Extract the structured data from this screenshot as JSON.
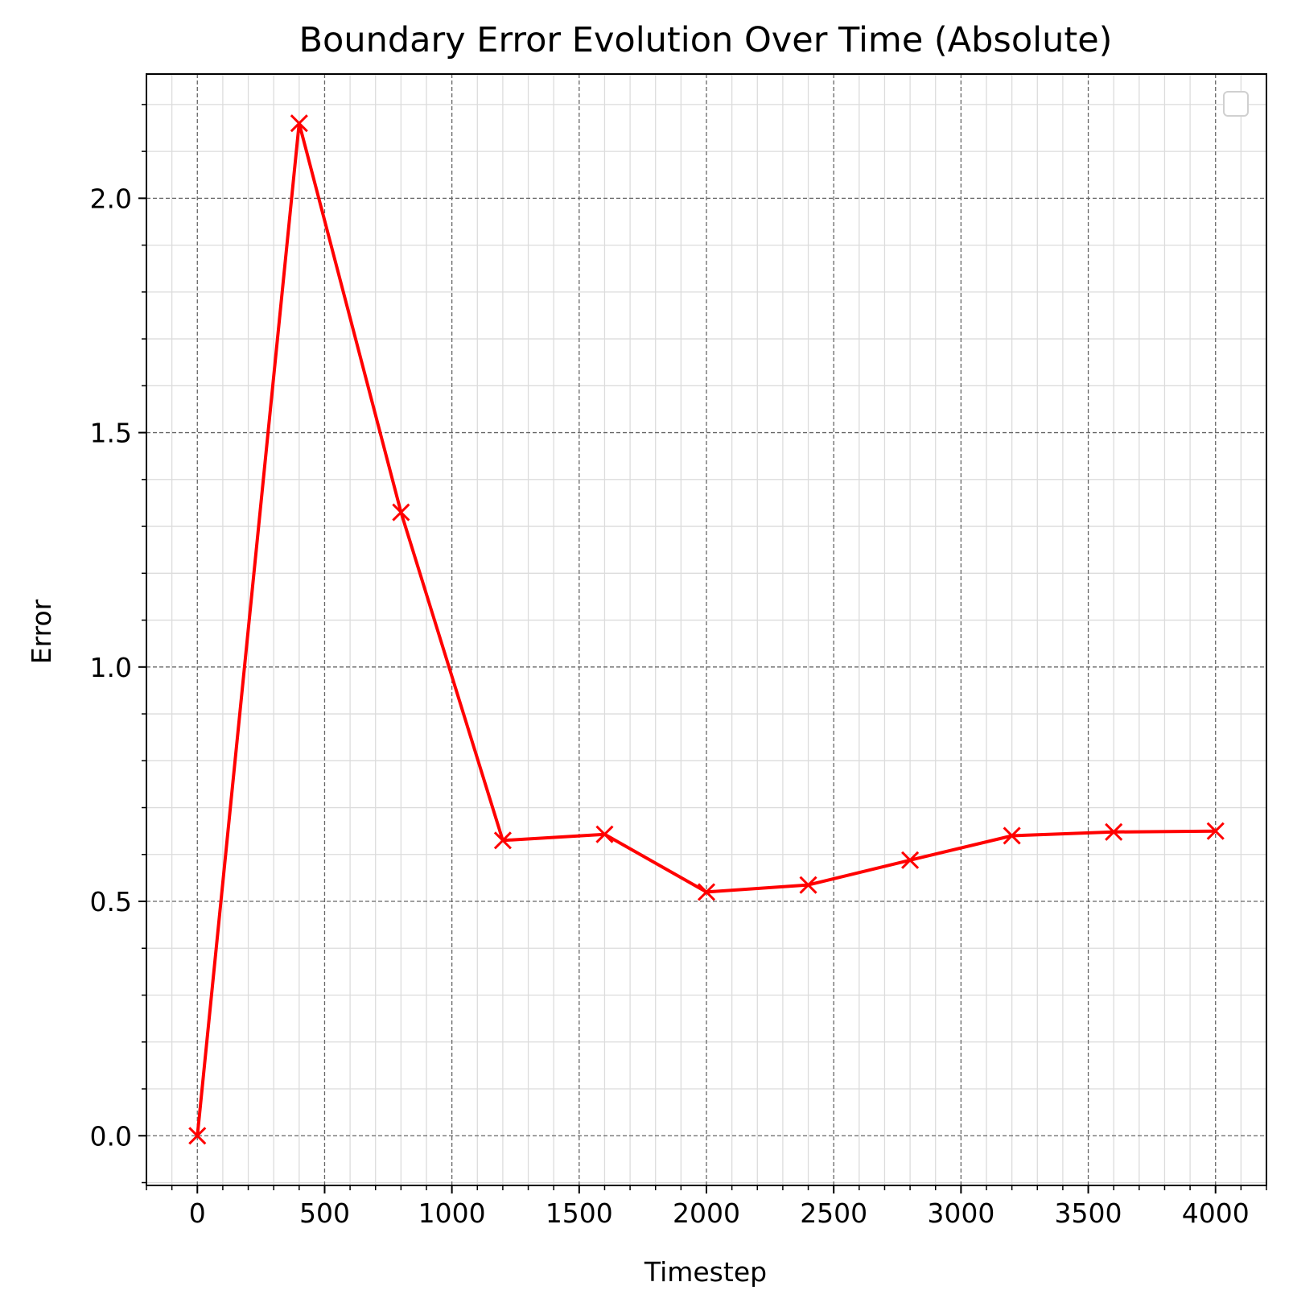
{
  "chart_data": {
    "type": "line",
    "title": "Boundary Error Evolution Over Time (Absolute)",
    "xlabel": "Timestep",
    "ylabel": "Error",
    "xlim": [
      -200,
      4200
    ],
    "ylim": [
      -0.106,
      2.265
    ],
    "x_ticks": [
      0,
      500,
      1000,
      1500,
      2000,
      2500,
      3000,
      3500,
      4000
    ],
    "y_ticks": [
      0.0,
      0.5,
      1.0,
      1.5,
      2.0
    ],
    "x_tick_labels": [
      "0",
      "500",
      "1000",
      "1500",
      "2000",
      "2500",
      "3000",
      "3500",
      "4000"
    ],
    "y_tick_labels": [
      "0.0",
      "0.5",
      "1.0",
      "1.5",
      "2.0"
    ],
    "x_minor_step": 100,
    "y_minor_step": 0.1,
    "grid": true,
    "legend": {
      "placement": "top-right",
      "entries": []
    },
    "series": [
      {
        "color": "#ff0000",
        "marker": "x",
        "x": [
          0,
          400,
          800,
          1200,
          1600,
          2000,
          2400,
          2800,
          3200,
          3600,
          4000
        ],
        "y": [
          0.0,
          2.16,
          1.33,
          0.63,
          0.643,
          0.52,
          0.535,
          0.588,
          0.64,
          0.648,
          0.65
        ]
      }
    ]
  }
}
